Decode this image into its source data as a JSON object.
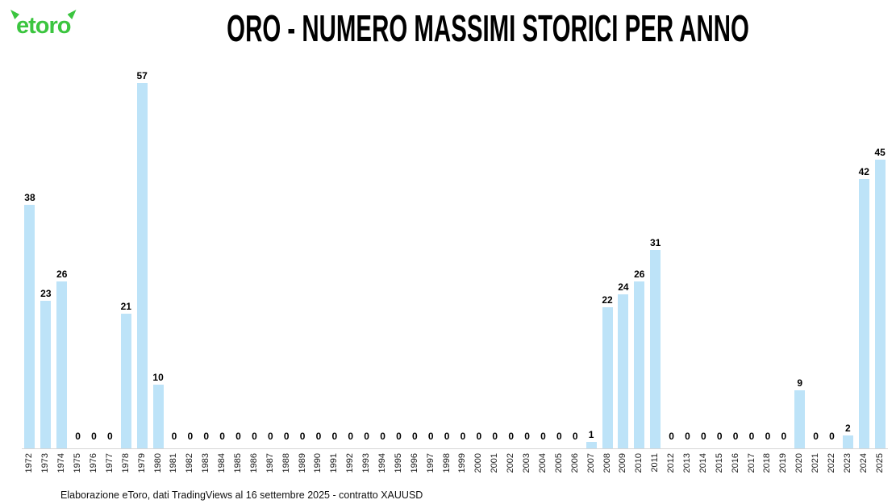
{
  "header": {
    "logo_text": "etoro",
    "title": "ORO - NUMERO MASSIMI STORICI PER ANNO"
  },
  "chart_data": {
    "type": "bar",
    "title": "ORO - NUMERO MASSIMI STORICI PER ANNO",
    "categories": [
      "1972",
      "1973",
      "1974",
      "1975",
      "1976",
      "1977",
      "1978",
      "1979",
      "1980",
      "1981",
      "1982",
      "1983",
      "1984",
      "1985",
      "1986",
      "1987",
      "1988",
      "1989",
      "1990",
      "1991",
      "1992",
      "1993",
      "1994",
      "1995",
      "1996",
      "1997",
      "1998",
      "1999",
      "2000",
      "2001",
      "2002",
      "2003",
      "2004",
      "2005",
      "2006",
      "2007",
      "2008",
      "2009",
      "2010",
      "2011",
      "2012",
      "2013",
      "2014",
      "2015",
      "2016",
      "2017",
      "2018",
      "2019",
      "2020",
      "2021",
      "2022",
      "2023",
      "2024",
      "2025"
    ],
    "values": [
      38,
      23,
      26,
      0,
      0,
      0,
      21,
      57,
      10,
      0,
      0,
      0,
      0,
      0,
      0,
      0,
      0,
      0,
      0,
      0,
      0,
      0,
      0,
      0,
      0,
      0,
      0,
      0,
      0,
      0,
      0,
      0,
      0,
      0,
      0,
      1,
      22,
      24,
      26,
      31,
      0,
      0,
      0,
      0,
      0,
      0,
      0,
      0,
      9,
      0,
      0,
      2,
      42,
      45
    ],
    "xlabel": "",
    "ylabel": "",
    "ylim": [
      0,
      57
    ],
    "grid": false,
    "legend": false,
    "value_labels": true
  },
  "footer": {
    "source": "Elaborazione eToro, dati TradingViews al 16 settembre 2025 - contratto XAUUSD"
  },
  "colors": {
    "brand_green": "#3BC53F",
    "bar_fill": "#BDE3F8",
    "axis_line": "#D6D6D6",
    "label_color": "#000000"
  }
}
